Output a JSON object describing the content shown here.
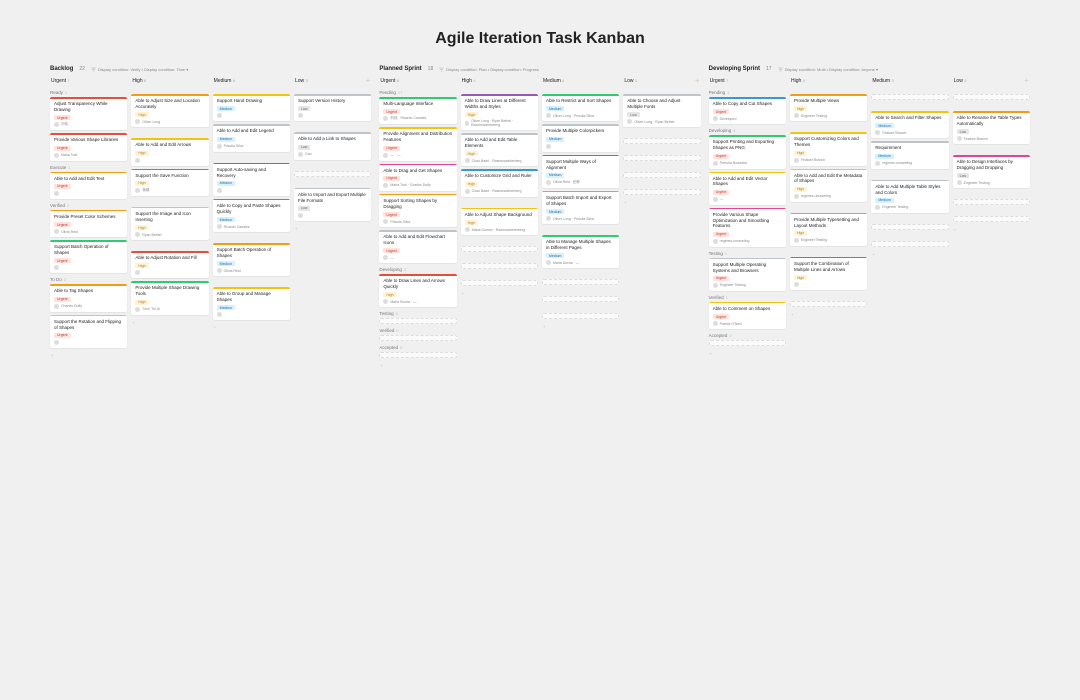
{
  "page_title": "Agile Iteration Task Kanban",
  "priority_tags": {
    "Urgent": {
      "bg": "#ffe2dd",
      "fg": "#c0392b",
      "stripe": "#e74c3c"
    },
    "High": {
      "bg": "#fff3d6",
      "fg": "#b7791f",
      "stripe": "#f39c12"
    },
    "Medium": {
      "bg": "#d6f0ff",
      "fg": "#2471a3",
      "stripe": "#3498db"
    },
    "Low": {
      "bg": "#e6e6e6",
      "fg": "#666666",
      "stripe": "#bdc3c7"
    }
  },
  "stripe_colors": {
    "red": "#e74c3c",
    "orange": "#f39c12",
    "yellow": "#f1c40f",
    "green": "#2ecc71",
    "blue": "#3498db",
    "purple": "#9b59b6",
    "pink": "#e84393",
    "gray": "#bdc3c7"
  },
  "boards": [
    {
      "name": "Backlog",
      "count": 22,
      "filter": "Display condition: Verify • Display condition: Time ▾",
      "columns": [
        {
          "name": "Urgent",
          "count": 7,
          "lanes": [
            {
              "label": "Ready",
              "count": 2,
              "cards": [
                {
                  "title": "Adjust Transparency While Drawing",
                  "tag": "Urgent",
                  "stripe": "red",
                  "assignee": "刘伟"
                },
                {
                  "title": "Provide Various Shape Libraries",
                  "tag": "Urgent",
                  "stripe": "red",
                  "assignee": "Maria Todt"
                }
              ]
            },
            {
              "label": "Execute",
              "count": 1,
              "cards": [
                {
                  "title": "Able to Add and Edit Text",
                  "tag": "Urgent",
                  "stripe": "orange",
                  "assignee": ""
                }
              ]
            },
            {
              "label": "Verified",
              "count": 2,
              "cards": [
                {
                  "title": "Provide Preset Color Schemes",
                  "tag": "Urgent",
                  "stripe": "orange",
                  "assignee": "Olivia Reid"
                },
                {
                  "title": "Support Batch Operation of Shapes",
                  "tag": "Urgent",
                  "stripe": "green",
                  "assignee": ""
                }
              ]
            },
            {
              "label": "To Do",
              "count": 2,
              "cards": [
                {
                  "title": "Able to Tag Shapes",
                  "tag": "Urgent",
                  "stripe": "orange",
                  "assignee": "Charles Duffy"
                },
                {
                  "title": "Support the Rotation and Flipping of Shapes",
                  "tag": "Urgent",
                  "stripe": "gray",
                  "assignee": ""
                }
              ]
            }
          ]
        },
        {
          "name": "High",
          "count": 6,
          "lanes": [
            {
              "cards": [
                {
                  "title": "Able to Adjust Size and Location Accurately",
                  "tag": "High",
                  "stripe": "orange",
                  "assignee": "Oliver Long"
                }
              ]
            },
            {
              "cards": [
                {
                  "title": "Able to Add and Edit Arrows",
                  "tag": "High",
                  "stripe": "yellow",
                  "assignee": ""
                },
                {
                  "title": "Support the Save Function",
                  "tag": "High",
                  "stripe": "blue",
                  "assignee": "杨娟"
                }
              ]
            },
            {
              "cards": [
                {
                  "title": "Support the Image and Icon Inserting",
                  "tag": "High",
                  "stripe": "gray",
                  "assignee": "Ryan Bethel"
                }
              ]
            },
            {
              "cards": [
                {
                  "title": "Able to Adjust Rotation and Fill",
                  "tag": "High",
                  "stripe": "red",
                  "assignee": ""
                },
                {
                  "title": "Provide Multiple Shape Drawing Tools",
                  "tag": "High",
                  "stripe": "green",
                  "assignee": "Trinh Thi Ai"
                }
              ]
            }
          ]
        },
        {
          "name": "Medium",
          "count": 6,
          "lanes": [
            {
              "cards": [
                {
                  "title": "Support Hand Drawing",
                  "tag": "Medium",
                  "stripe": "yellow",
                  "assignee": ""
                },
                {
                  "title": "Able to Add and Edit Legend",
                  "tag": "Medium",
                  "stripe": "gray",
                  "assignee": "Priscila Silva"
                }
              ]
            },
            {
              "cards": [
                {
                  "title": "Support Auto-saving and Recovery",
                  "tag": "Medium",
                  "stripe": "purple",
                  "assignee": ""
                },
                {
                  "title": "Able to Copy and Paste Shapes Quickly",
                  "tag": "Medium",
                  "stripe": "blue",
                  "assignee": "Ricardo Canales"
                }
              ]
            },
            {
              "cards": [
                {
                  "title": "Support Batch Operation of Shapes",
                  "tag": "Medium",
                  "stripe": "orange",
                  "assignee": "Olivia Reid"
                }
              ]
            },
            {
              "cards": [
                {
                  "title": "Able to Group and Manage Shapes",
                  "tag": "Medium",
                  "stripe": "yellow",
                  "assignee": ""
                }
              ]
            }
          ]
        },
        {
          "name": "Low",
          "count": 3,
          "lanes": [
            {
              "cards": [
                {
                  "title": "Support Version History",
                  "tag": "Low",
                  "stripe": "gray",
                  "assignee": ""
                }
              ]
            },
            {
              "cards": [
                {
                  "title": "Able to Add a Link to Shapes",
                  "tag": "Low",
                  "stripe": "gray",
                  "assignee": "Gao"
                }
              ]
            },
            {
              "cards": []
            },
            {
              "cards": [
                {
                  "title": "Able to Import and Export Multiple File Formats",
                  "tag": "Low",
                  "stripe": "gray",
                  "assignee": ""
                }
              ]
            }
          ]
        }
      ]
    },
    {
      "name": "Planned Sprint",
      "count": 18,
      "filter": "Display condition: Plan • Display condition: Progress",
      "columns": [
        {
          "name": "Urgent",
          "count": 8,
          "lanes": [
            {
              "label": "Pending",
              "count": 17,
              "cards": [
                {
                  "title": "Multi-Language Interface",
                  "tag": "Urgent",
                  "stripe": "green",
                  "assignee": "刘伟 · Ricardo Canales"
                },
                {
                  "title": "Provide Alignment and Distribution Features",
                  "tag": "Urgent",
                  "stripe": "yellow",
                  "assignee": "— · —"
                },
                {
                  "title": "Able to Drag and Get Shapes",
                  "tag": "Urgent",
                  "stripe": "pink",
                  "assignee": "Maria Todt · Charles Duffy"
                },
                {
                  "title": "Support Sorting Shapes by Dragging",
                  "tag": "Urgent",
                  "stripe": "orange",
                  "assignee": "Priscila Silva"
                },
                {
                  "title": "Able to Add and Edit Flowchart Icons",
                  "tag": "Urgent",
                  "stripe": "gray",
                  "assignee": "—"
                }
              ]
            },
            {
              "label": "Developing",
              "count": 2,
              "cards": [
                {
                  "title": "Able to Draw Lines and Arrows Quickly",
                  "tag": "High",
                  "stripe": "red",
                  "assignee": "Maria Socha · — "
                }
              ]
            },
            {
              "label": "Testing",
              "count": 0,
              "cards": []
            },
            {
              "label": "Verified",
              "count": 0,
              "cards": []
            },
            {
              "label": "Accepted",
              "count": 0,
              "cards": []
            }
          ]
        },
        {
          "name": "High",
          "count": 4,
          "lanes": [
            {
              "cards": [
                {
                  "title": "Able to Draw Lines at Different Widths and Styles",
                  "tag": "High",
                  "stripe": "purple",
                  "assignee": "Oliver Long · Ryan Bethel · Rasmuswinterberg"
                },
                {
                  "title": "Able to Add and Edit Table Elements",
                  "tag": "High",
                  "stripe": "gray",
                  "assignee": "Chao Badri · Rasmuswinterberg"
                },
                {
                  "title": "Able to Customize Grid and Ruler",
                  "tag": "High",
                  "stripe": "blue",
                  "assignee": "Chao Badri · Rasmuswinterberg"
                }
              ]
            },
            {
              "cards": [
                {
                  "title": "Able to Adjust Shape Background",
                  "tag": "High",
                  "stripe": "yellow",
                  "assignee": "Maria Gomez · Rasmuswinterberg"
                }
              ]
            }
          ]
        },
        {
          "name": "Medium",
          "count": 6,
          "lanes": [
            {
              "cards": [
                {
                  "title": "Able to Restrict and Sort Shapes",
                  "tag": "Medium",
                  "stripe": "green",
                  "assignee": "Oliver Long · Priscila Silva"
                },
                {
                  "title": "Provide Multiple Colorpickers",
                  "tag": "Medium",
                  "stripe": "gray",
                  "assignee": ""
                },
                {
                  "title": "Support Multiple Ways of Alignment",
                  "tag": "Medium",
                  "stripe": "red",
                  "assignee": "Olivia Reid · 田菲"
                },
                {
                  "title": "Support Batch Import and Export of Shapes",
                  "tag": "Medium",
                  "stripe": "orange",
                  "assignee": "Oliver Long · Priscila Silva"
                }
              ]
            },
            {
              "cards": [
                {
                  "title": "Able to Manage Multiple Shapes in Different Pages",
                  "tag": "Medium",
                  "stripe": "green",
                  "assignee": "Maria Socha · — "
                }
              ]
            }
          ]
        },
        {
          "name": "Low",
          "count": 1,
          "lanes": [
            {
              "cards": [
                {
                  "title": "Able to Choose and Adjust Multiple Fonts",
                  "tag": "Low",
                  "stripe": "gray",
                  "assignee": "Oliver Long · Ryan Bethel"
                }
              ]
            }
          ]
        }
      ]
    },
    {
      "name": "Developing Sprint",
      "count": 17,
      "filter": "Display condition: Multi • Display condition: Anyone ▾",
      "columns": [
        {
          "name": "Urgent",
          "count": 7,
          "lanes": [
            {
              "label": "Pending",
              "count": 1,
              "cards": [
                {
                  "title": "Able to Copy and Cut Shapes",
                  "tag": "Urgent",
                  "stripe": "blue",
                  "assignee": "Developed"
                }
              ]
            },
            {
              "label": "Developing",
              "count": 4,
              "cards": [
                {
                  "title": "Support Printing and Exporting Shapes as PNG",
                  "tag": "Urgent",
                  "stripe": "green",
                  "assignee": "Pretoria Bodanka"
                },
                {
                  "title": "Able to Add and Edit Vector Shapes",
                  "tag": "Urgent",
                  "stripe": "yellow",
                  "assignee": "—"
                },
                {
                  "title": "Provide Various Shape Optimization and Smoothing Features",
                  "tag": "Urgent",
                  "stripe": "pink",
                  "assignee": "regimes-unraveling"
                }
              ]
            },
            {
              "label": "Testing",
              "count": 1,
              "cards": [
                {
                  "title": "Support Multiple Operating Systems and Browsers",
                  "tag": "Urgent",
                  "stripe": "gray",
                  "assignee": "Engineer Testing"
                }
              ]
            },
            {
              "label": "Verified",
              "count": 1,
              "cards": [
                {
                  "title": "Able to Comment on Shapes",
                  "tag": "Urgent",
                  "stripe": "yellow",
                  "assignee": "Patrick O'Neill"
                }
              ]
            },
            {
              "label": "Accepted",
              "count": 0,
              "cards": []
            }
          ]
        },
        {
          "name": "High",
          "count": 4,
          "lanes": [
            {
              "cards": [
                {
                  "title": "Provide Multiple Views",
                  "tag": "High",
                  "stripe": "orange",
                  "assignee": "Engineer Testing"
                }
              ]
            },
            {
              "cards": [
                {
                  "title": "Support Customizing Colors and Themes",
                  "tag": "High",
                  "stripe": "yellow",
                  "assignee": "Feature Branch"
                },
                {
                  "title": "Able to Add and Edit the Metadata of Shapes",
                  "tag": "High",
                  "stripe": "gray",
                  "assignee": "regimes-unraveling"
                }
              ]
            },
            {
              "cards": [
                {
                  "title": "Provide Multiple Typesetting and Layout Methods",
                  "tag": "High",
                  "stripe": "orange",
                  "assignee": "Engineer Testing"
                }
              ]
            },
            {
              "cards": [
                {
                  "title": "Support the Combination of Multiple Lines and Arrows",
                  "tag": "High",
                  "stripe": "pink",
                  "assignee": ""
                }
              ]
            }
          ]
        },
        {
          "name": "Medium",
          "count": 3,
          "lanes": [
            {
              "cards": []
            },
            {
              "cards": [
                {
                  "title": "Able to Search and Filter Shapes",
                  "tag": "Medium",
                  "stripe": "yellow",
                  "assignee": "Feature Branch"
                },
                {
                  "title": "Requirement",
                  "tag": "Medium",
                  "stripe": "gray",
                  "assignee": "regimes-unraveling"
                }
              ]
            },
            {
              "cards": [
                {
                  "title": "Able to Add Multiple Table Styles and Colors",
                  "tag": "Medium",
                  "stripe": "gray",
                  "assignee": "Engineer Testing"
                }
              ]
            }
          ]
        },
        {
          "name": "Low",
          "count": 2,
          "lanes": [
            {
              "cards": []
            },
            {
              "cards": [
                {
                  "title": "Able to Rename the Table Types Automatically",
                  "tag": "Low",
                  "stripe": "orange",
                  "assignee": "Feature Branch"
                }
              ]
            },
            {
              "cards": [
                {
                  "title": "Able to Design Interfaces by Dragging and Dropping",
                  "tag": "Low",
                  "stripe": "pink",
                  "assignee": "Engineer Testing"
                }
              ]
            }
          ]
        }
      ]
    }
  ],
  "add_label": "+ Add"
}
